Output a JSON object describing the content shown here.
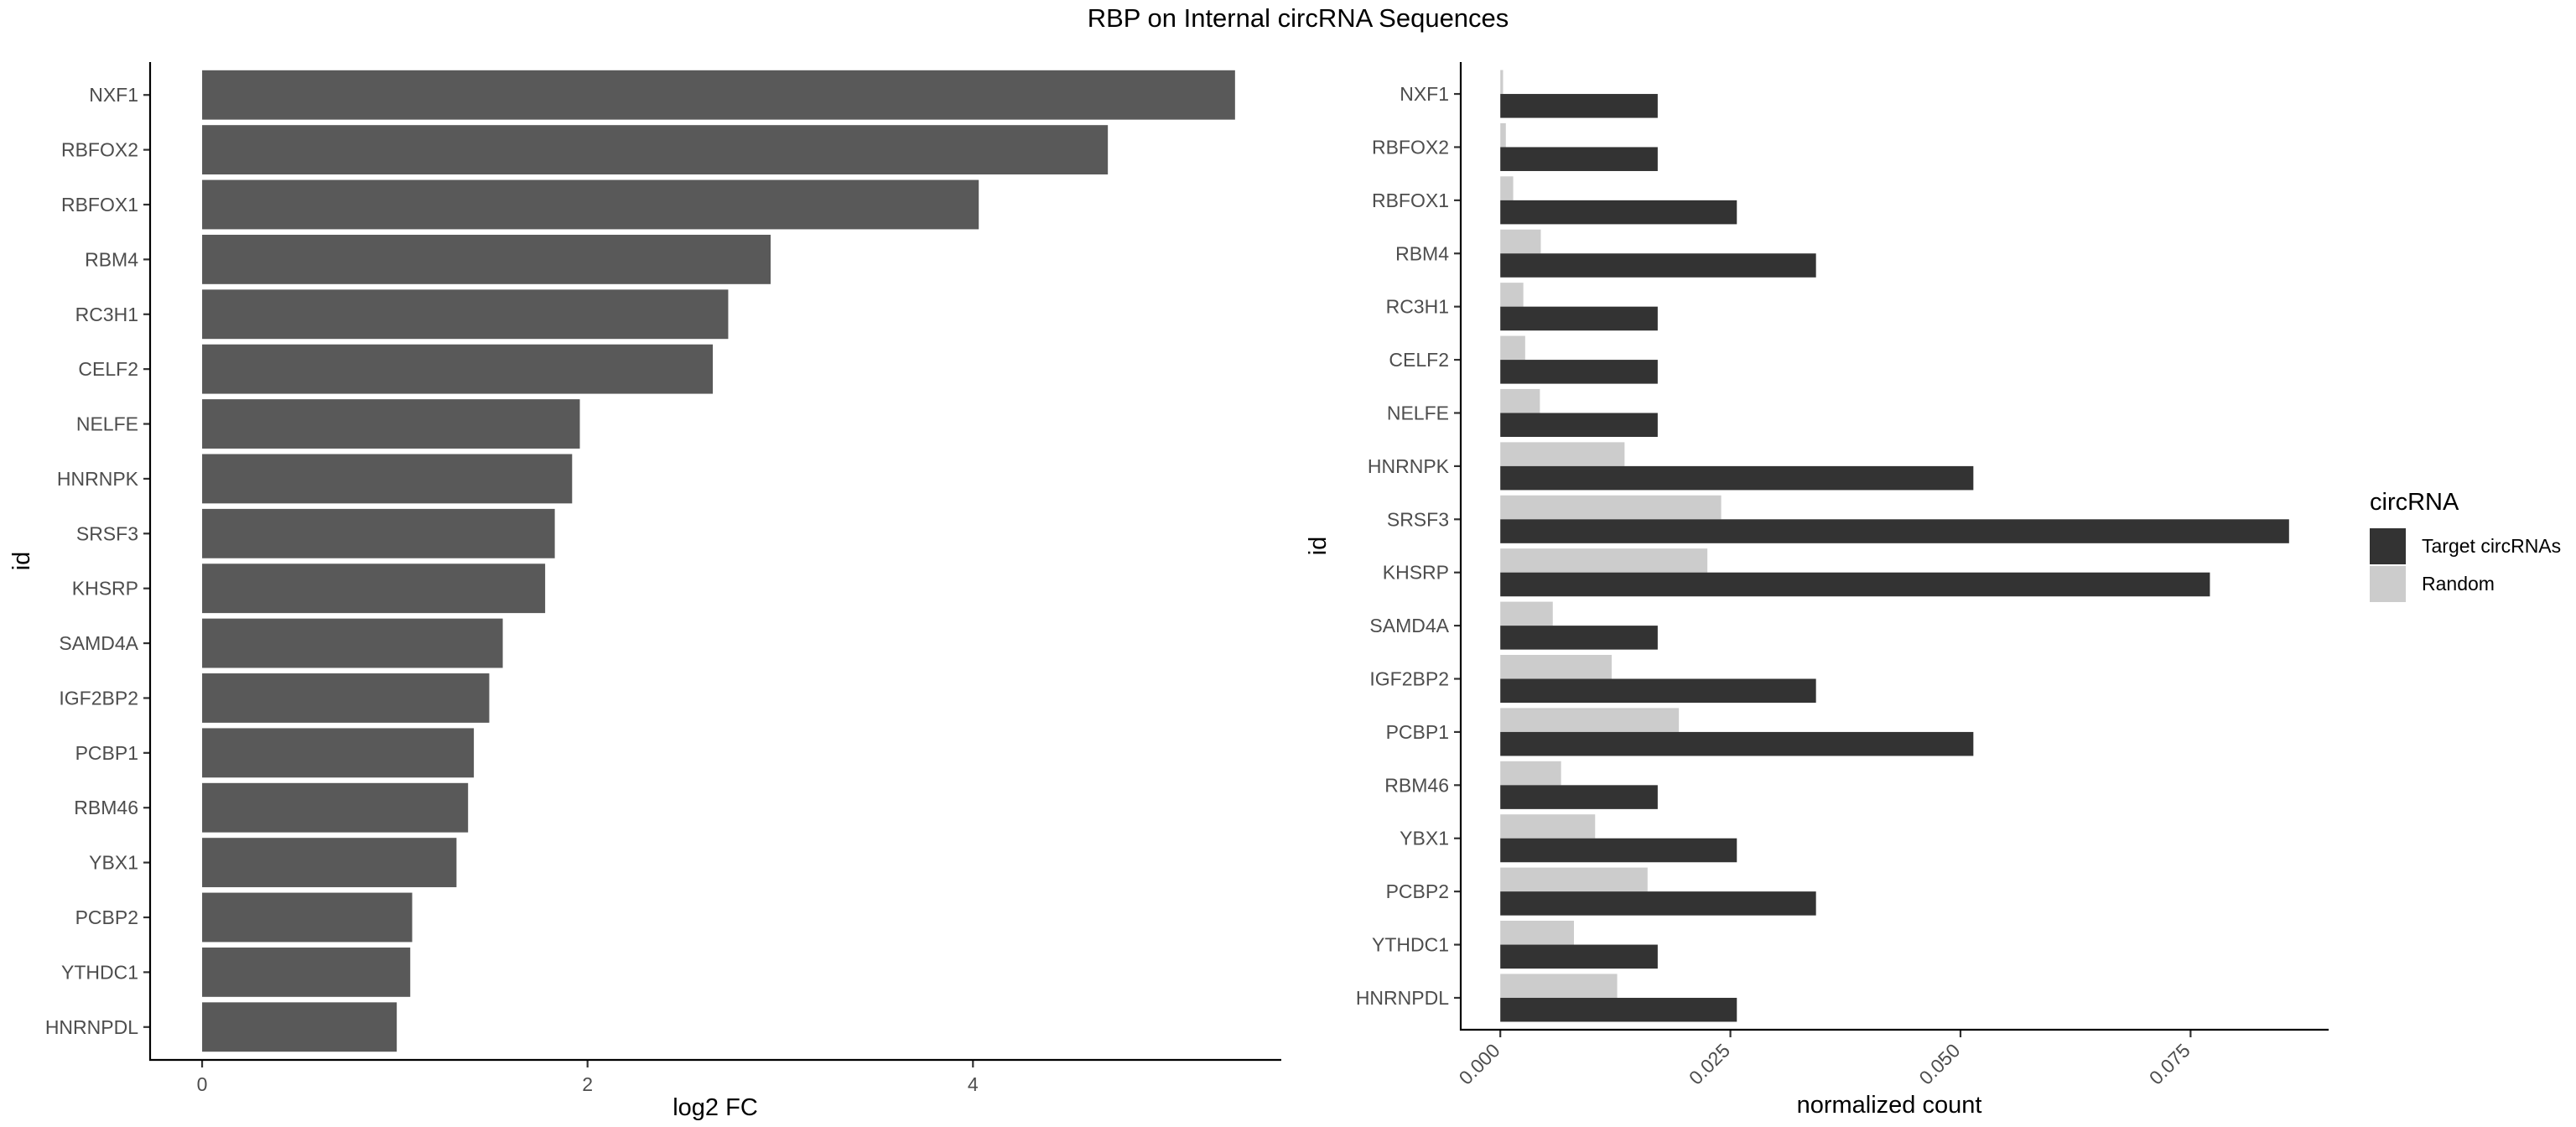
{
  "title": "RBP on Internal circRNA Sequences",
  "chart_data": [
    {
      "type": "bar",
      "orientation": "horizontal",
      "categories": [
        "NXF1",
        "RBFOX2",
        "RBFOX1",
        "RBM4",
        "RC3H1",
        "CELF2",
        "NELFE",
        "HNRNPK",
        "SRSF3",
        "KHSRP",
        "SAMD4A",
        "IGF2BP2",
        "PCBP1",
        "RBM46",
        "YBX1",
        "PCBP2",
        "YTHDC1",
        "HNRNPDL"
      ],
      "values": [
        5.36,
        4.7,
        4.03,
        2.95,
        2.73,
        2.65,
        1.96,
        1.92,
        1.83,
        1.78,
        1.56,
        1.49,
        1.41,
        1.38,
        1.32,
        1.09,
        1.08,
        1.01
      ],
      "xlabel": "log2 FC",
      "ylabel": "id",
      "xlim": [
        -0.27,
        5.6
      ],
      "xticks": [
        0,
        2,
        4
      ],
      "xtick_labels": [
        "0",
        "2",
        "4"
      ],
      "bar_color": "#595959",
      "grid": false
    },
    {
      "type": "bar",
      "orientation": "horizontal",
      "categories": [
        "NXF1",
        "RBFOX2",
        "RBFOX1",
        "RBM4",
        "RC3H1",
        "CELF2",
        "NELFE",
        "HNRNPK",
        "SRSF3",
        "KHSRP",
        "SAMD4A",
        "IGF2BP2",
        "PCBP1",
        "RBM46",
        "YBX1",
        "PCBP2",
        "YTHDC1",
        "HNRNPDL"
      ],
      "series": [
        {
          "name": "Target circRNAs",
          "color": "#333333",
          "values": [
            0.0171,
            0.0171,
            0.0257,
            0.0343,
            0.0171,
            0.0171,
            0.0171,
            0.0514,
            0.0857,
            0.0771,
            0.0171,
            0.0343,
            0.0514,
            0.0171,
            0.0257,
            0.0343,
            0.0171,
            0.0257
          ]
        },
        {
          "name": "Random",
          "color": "#cccccc",
          "values": [
            0.0003,
            0.0006,
            0.0014,
            0.0044,
            0.0025,
            0.0027,
            0.0043,
            0.0135,
            0.024,
            0.0225,
            0.0057,
            0.0121,
            0.0194,
            0.0066,
            0.0103,
            0.016,
            0.008,
            0.0127
          ]
        }
      ],
      "xlabel": "normalized count",
      "ylabel": "id",
      "xlim": [
        -0.0043,
        0.09
      ],
      "xticks": [
        0,
        0.025,
        0.05,
        0.075
      ],
      "xtick_labels": [
        "0.000",
        "0.025",
        "0.050",
        "0.075"
      ],
      "legend_title": "circRNA",
      "legend_position": "right",
      "grid": false
    }
  ]
}
